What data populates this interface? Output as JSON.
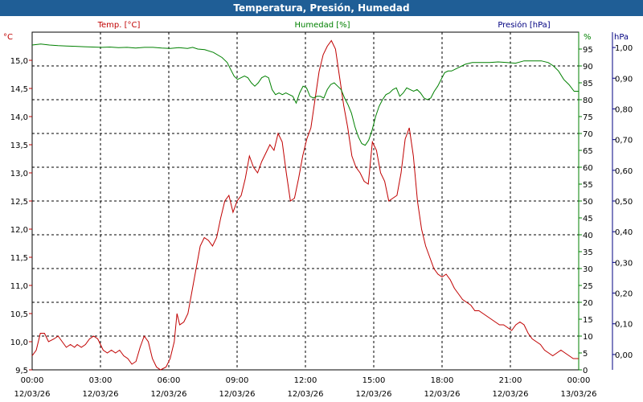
{
  "window_title": "Temperatura, Presión, Humedad",
  "colors": {
    "title_bar": "#1f5e96",
    "temp": "#c00000",
    "humidity": "#008000",
    "pressure": "#000080",
    "grid": "#000000",
    "text": "#000000"
  },
  "chart_data": {
    "type": "line",
    "title": "Temperatura, Presión, Humedad",
    "grid": true,
    "x": {
      "range": [
        "12/03/26 00:00",
        "13/03/26 00:00"
      ],
      "ticks": [
        {
          "time": "00:00",
          "date": "12/03/26"
        },
        {
          "time": "03:00",
          "date": "12/03/26"
        },
        {
          "time": "06:00",
          "date": "12/03/26"
        },
        {
          "time": "09:00",
          "date": "12/03/26"
        },
        {
          "time": "12:00",
          "date": "12/03/26"
        },
        {
          "time": "15:00",
          "date": "12/03/26"
        },
        {
          "time": "18:00",
          "date": "12/03/26"
        },
        {
          "time": "21:00",
          "date": "12/03/26"
        },
        {
          "time": "00:00",
          "date": "13/03/26"
        }
      ]
    },
    "axes": {
      "temp": {
        "label": "Temp. [°C]",
        "unit": "°C",
        "ylim": [
          9.5,
          15.5
        ],
        "ticks": [
          "9,5",
          "10,0",
          "10,5",
          "11,0",
          "11,5",
          "12,0",
          "12,5",
          "13,0",
          "13,5",
          "14,0",
          "14,5",
          "15,0"
        ],
        "values": [
          9.5,
          10.0,
          10.5,
          11.0,
          11.5,
          12.0,
          12.5,
          13.0,
          13.5,
          14.0,
          14.5,
          15.0
        ]
      },
      "humidity": {
        "label": "Humedad [%]",
        "unit": "%",
        "ylim": [
          0,
          100
        ],
        "ticks": [
          "0",
          "5",
          "10",
          "15",
          "20",
          "25",
          "30",
          "35",
          "40",
          "45",
          "50",
          "55",
          "60",
          "65",
          "70",
          "75",
          "80",
          "85",
          "90",
          "95"
        ],
        "values": [
          0,
          5,
          10,
          15,
          20,
          25,
          30,
          35,
          40,
          45,
          50,
          55,
          60,
          65,
          70,
          75,
          80,
          85,
          90,
          95
        ]
      },
      "pressure": {
        "label": "Presión [hPa]",
        "unit": "hPa",
        "ylim": [
          -0.05,
          1.05
        ],
        "ticks": [
          "0,00",
          "0,10",
          "0,20",
          "0,30",
          "0,40",
          "0,50",
          "0,60",
          "0,70",
          "0,80",
          "0,90",
          "1,00"
        ],
        "values": [
          0.0,
          0.1,
          0.2,
          0.3,
          0.4,
          0.5,
          0.6,
          0.7,
          0.8,
          0.9,
          1.0
        ]
      }
    },
    "series": [
      {
        "name": "Temp. [°C]",
        "axis": "temp",
        "points": [
          [
            0.0,
            9.75
          ],
          [
            0.3,
            9.85
          ],
          [
            0.6,
            10.15
          ],
          [
            0.9,
            10.15
          ],
          [
            1.2,
            10.0
          ],
          [
            1.6,
            10.05
          ],
          [
            1.9,
            10.1
          ],
          [
            2.2,
            10.0
          ],
          [
            2.5,
            9.9
          ],
          [
            2.8,
            9.95
          ],
          [
            3.1,
            9.9
          ],
          [
            3.3,
            9.95
          ],
          [
            3.6,
            9.9
          ],
          [
            3.9,
            9.95
          ],
          [
            4.2,
            10.05
          ],
          [
            4.5,
            10.1
          ],
          [
            4.8,
            10.05
          ],
          [
            5.2,
            9.85
          ],
          [
            5.5,
            9.8
          ],
          [
            5.8,
            9.85
          ],
          [
            6.1,
            9.8
          ],
          [
            6.4,
            9.85
          ],
          [
            6.7,
            9.75
          ],
          [
            7.0,
            9.7
          ],
          [
            7.3,
            9.6
          ],
          [
            7.6,
            9.65
          ],
          [
            7.9,
            9.9
          ],
          [
            8.2,
            10.1
          ],
          [
            8.5,
            10.0
          ],
          [
            8.8,
            9.7
          ],
          [
            9.1,
            9.55
          ],
          [
            9.4,
            9.5
          ],
          [
            9.8,
            9.55
          ],
          [
            10.1,
            9.7
          ],
          [
            10.4,
            10.0
          ],
          [
            10.6,
            10.5
          ],
          [
            10.8,
            10.3
          ],
          [
            11.1,
            10.35
          ],
          [
            11.4,
            10.5
          ],
          [
            11.7,
            10.9
          ],
          [
            12.0,
            11.3
          ],
          [
            12.3,
            11.7
          ],
          [
            12.6,
            11.85
          ],
          [
            12.9,
            11.8
          ],
          [
            13.2,
            11.7
          ],
          [
            13.5,
            11.85
          ],
          [
            13.8,
            12.2
          ],
          [
            14.1,
            12.5
          ],
          [
            14.4,
            12.6
          ],
          [
            14.7,
            12.3
          ],
          [
            15.0,
            12.5
          ],
          [
            15.3,
            12.6
          ],
          [
            15.6,
            12.9
          ],
          [
            15.9,
            13.3
          ],
          [
            16.2,
            13.1
          ],
          [
            16.5,
            13.0
          ],
          [
            16.8,
            13.2
          ],
          [
            17.1,
            13.35
          ],
          [
            17.4,
            13.5
          ],
          [
            17.7,
            13.4
          ],
          [
            18.0,
            13.7
          ],
          [
            18.3,
            13.55
          ],
          [
            18.6,
            13.0
          ],
          [
            18.9,
            12.5
          ],
          [
            19.2,
            12.55
          ],
          [
            19.5,
            12.9
          ],
          [
            19.8,
            13.3
          ],
          [
            20.1,
            13.6
          ],
          [
            20.4,
            13.8
          ],
          [
            20.7,
            14.3
          ],
          [
            21.0,
            14.8
          ],
          [
            21.3,
            15.1
          ],
          [
            21.6,
            15.25
          ],
          [
            21.9,
            15.35
          ],
          [
            22.2,
            15.2
          ],
          [
            22.5,
            14.7
          ],
          [
            22.8,
            14.2
          ],
          [
            23.1,
            13.8
          ],
          [
            23.4,
            13.3
          ],
          [
            23.7,
            13.1
          ],
          [
            24.0,
            13.0
          ],
          [
            24.3,
            12.85
          ],
          [
            24.6,
            12.8
          ],
          [
            24.9,
            13.55
          ],
          [
            25.2,
            13.4
          ],
          [
            25.5,
            13.0
          ],
          [
            25.8,
            12.85
          ],
          [
            26.1,
            12.5
          ],
          [
            26.4,
            12.55
          ],
          [
            26.7,
            12.6
          ],
          [
            27.0,
            13.0
          ],
          [
            27.3,
            13.6
          ],
          [
            27.6,
            13.8
          ],
          [
            27.9,
            13.3
          ],
          [
            28.2,
            12.5
          ],
          [
            28.5,
            12.0
          ],
          [
            28.8,
            11.7
          ],
          [
            29.1,
            11.5
          ],
          [
            29.4,
            11.3
          ],
          [
            29.7,
            11.2
          ],
          [
            30.0,
            11.15
          ],
          [
            30.3,
            11.2
          ],
          [
            30.6,
            11.1
          ],
          [
            30.9,
            10.95
          ],
          [
            31.2,
            10.85
          ],
          [
            31.5,
            10.75
          ],
          [
            31.8,
            10.7
          ],
          [
            32.1,
            10.65
          ],
          [
            32.4,
            10.55
          ],
          [
            32.7,
            10.55
          ],
          [
            33.0,
            10.5
          ],
          [
            33.3,
            10.45
          ],
          [
            33.6,
            10.4
          ],
          [
            33.9,
            10.35
          ],
          [
            34.2,
            10.3
          ],
          [
            34.5,
            10.3
          ],
          [
            34.8,
            10.25
          ],
          [
            35.1,
            10.2
          ],
          [
            35.4,
            10.3
          ],
          [
            35.7,
            10.35
          ],
          [
            36.0,
            10.3
          ],
          [
            36.3,
            10.15
          ],
          [
            36.6,
            10.05
          ],
          [
            36.9,
            10.0
          ],
          [
            37.2,
            9.95
          ],
          [
            37.5,
            9.85
          ],
          [
            37.8,
            9.8
          ],
          [
            38.1,
            9.75
          ],
          [
            38.4,
            9.8
          ],
          [
            38.7,
            9.85
          ],
          [
            39.0,
            9.8
          ],
          [
            39.3,
            9.75
          ],
          [
            39.6,
            9.7
          ],
          [
            40.0,
            9.7
          ]
        ]
      },
      {
        "name": "Humedad [%]",
        "axis": "humidity",
        "points": [
          [
            0.0,
            96.2
          ],
          [
            1.5,
            96.5
          ],
          [
            3.0,
            96.2
          ],
          [
            4.5,
            96.0
          ],
          [
            6.0,
            95.9
          ],
          [
            7.5,
            95.8
          ],
          [
            9.0,
            95.7
          ],
          [
            10.5,
            95.6
          ],
          [
            12.0,
            95.5
          ],
          [
            13.5,
            95.6
          ],
          [
            15.0,
            95.4
          ],
          [
            16.5,
            95.5
          ],
          [
            18.0,
            95.3
          ],
          [
            19.5,
            95.5
          ],
          [
            21.0,
            95.5
          ],
          [
            22.5,
            95.3
          ],
          [
            24.0,
            95.2
          ],
          [
            25.5,
            95.4
          ],
          [
            27.0,
            95.2
          ],
          [
            27.9,
            95.5
          ],
          [
            28.8,
            95.0
          ],
          [
            30.0,
            94.8
          ],
          [
            31.5,
            94.0
          ],
          [
            33.0,
            92.5
          ],
          [
            33.9,
            91.0
          ],
          [
            34.5,
            89.0
          ],
          [
            35.1,
            87.0
          ],
          [
            35.7,
            86.0
          ],
          [
            36.3,
            86.5
          ],
          [
            36.9,
            87.0
          ],
          [
            37.5,
            86.5
          ],
          [
            38.1,
            85.0
          ],
          [
            38.7,
            84.0
          ],
          [
            39.3,
            85.0
          ],
          [
            39.9,
            86.5
          ],
          [
            40.5,
            87.0
          ],
          [
            41.1,
            86.5
          ],
          [
            41.7,
            83.0
          ],
          [
            42.3,
            81.5
          ],
          [
            42.9,
            82.0
          ],
          [
            43.5,
            81.5
          ],
          [
            44.1,
            82.0
          ],
          [
            44.7,
            81.5
          ],
          [
            45.3,
            81.0
          ],
          [
            45.9,
            79.0
          ],
          [
            46.5,
            82.0
          ],
          [
            47.1,
            84.0
          ],
          [
            47.7,
            83.5
          ],
          [
            48.3,
            81.0
          ],
          [
            48.9,
            80.5
          ],
          [
            49.5,
            81.0
          ],
          [
            50.1,
            81.0
          ],
          [
            50.7,
            80.5
          ],
          [
            51.3,
            83.0
          ],
          [
            51.9,
            84.5
          ],
          [
            52.5,
            85.0
          ],
          [
            53.1,
            84.0
          ],
          [
            53.7,
            83.0
          ],
          [
            54.3,
            80.5
          ],
          [
            54.9,
            78.5
          ],
          [
            55.5,
            76.0
          ],
          [
            56.1,
            72.0
          ],
          [
            56.7,
            69.0
          ],
          [
            57.3,
            67.0
          ],
          [
            57.9,
            66.5
          ],
          [
            58.5,
            68.0
          ],
          [
            59.1,
            71.0
          ],
          [
            59.7,
            75.0
          ],
          [
            60.3,
            78.0
          ],
          [
            60.9,
            80.0
          ],
          [
            61.5,
            81.5
          ],
          [
            62.1,
            82.0
          ],
          [
            62.7,
            83.0
          ],
          [
            63.3,
            83.5
          ],
          [
            63.9,
            81.0
          ],
          [
            64.5,
            82.0
          ],
          [
            65.1,
            83.5
          ],
          [
            65.7,
            83.0
          ],
          [
            66.3,
            82.5
          ],
          [
            66.9,
            83.0
          ],
          [
            67.5,
            82.0
          ],
          [
            68.1,
            80.5
          ],
          [
            68.7,
            80.0
          ],
          [
            69.3,
            80.5
          ],
          [
            69.9,
            82.5
          ],
          [
            70.5,
            84.0
          ],
          [
            71.1,
            86.0
          ],
          [
            71.7,
            88.0
          ],
          [
            72.3,
            88.5
          ],
          [
            72.9,
            88.5
          ],
          [
            73.5,
            89.0
          ],
          [
            74.1,
            89.5
          ],
          [
            74.7,
            90.0
          ],
          [
            75.3,
            90.5
          ],
          [
            76.5,
            91.0
          ],
          [
            78.0,
            91.0
          ],
          [
            79.5,
            91.0
          ],
          [
            81.0,
            91.2
          ],
          [
            82.5,
            91.0
          ],
          [
            84.0,
            90.8
          ],
          [
            85.5,
            91.5
          ],
          [
            87.0,
            91.5
          ],
          [
            88.5,
            91.5
          ],
          [
            89.7,
            91.0
          ],
          [
            90.6,
            90.0
          ],
          [
            91.5,
            88.5
          ],
          [
            92.4,
            86.0
          ],
          [
            93.3,
            84.5
          ],
          [
            94.2,
            82.5
          ],
          [
            95.0,
            82.5
          ]
        ]
      }
    ]
  }
}
